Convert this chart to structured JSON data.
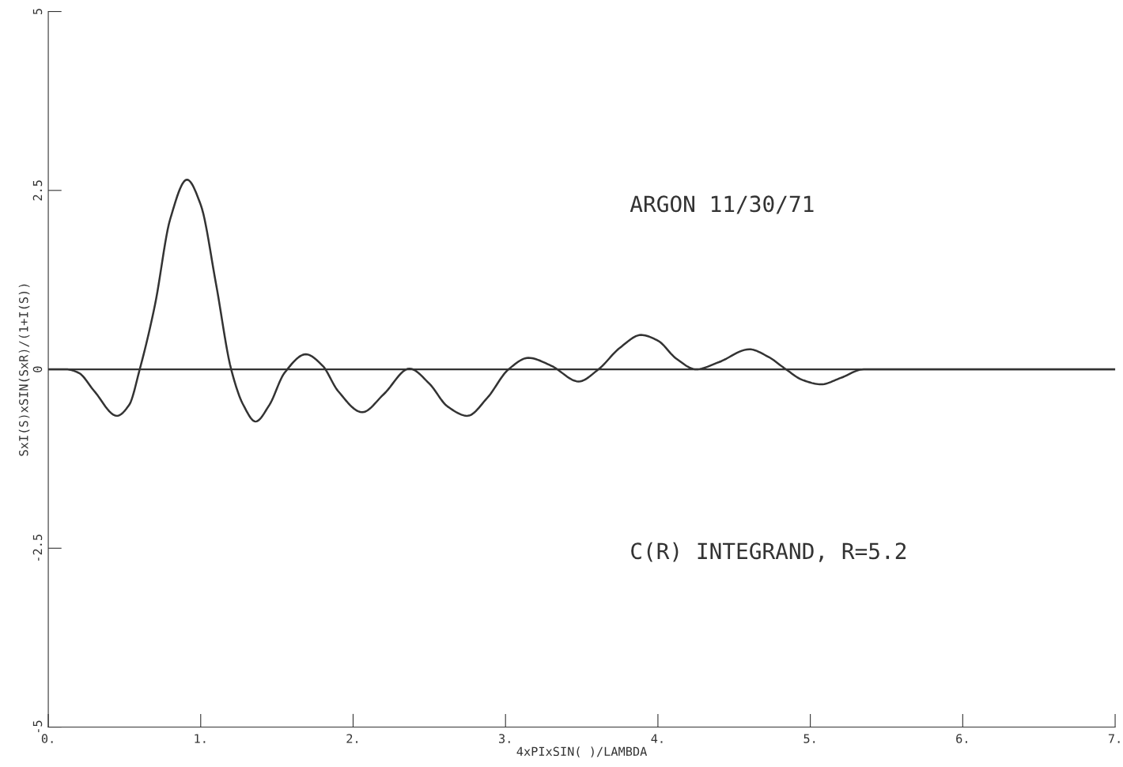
{
  "chart_data": {
    "type": "line",
    "xlabel": "4xPIxSIN( )/LAMBDA",
    "ylabel": "SxI(S)xSIN(SxR)/(1+I(S))",
    "annotations": [
      "ARGON 11/30/71",
      "C(R) INTEGRAND, R=5.2"
    ],
    "xlim": [
      0,
      7
    ],
    "ylim": [
      -5,
      5
    ],
    "xticks": [
      {
        "value": 0,
        "label": "0."
      },
      {
        "value": 1,
        "label": "1."
      },
      {
        "value": 2,
        "label": "2."
      },
      {
        "value": 3,
        "label": "3."
      },
      {
        "value": 4,
        "label": "4."
      },
      {
        "value": 5,
        "label": "5."
      },
      {
        "value": 6,
        "label": "6."
      },
      {
        "value": 7,
        "label": "7."
      }
    ],
    "yticks": [
      -5,
      -2.5,
      0,
      2.5,
      5
    ],
    "ref_lines": [
      {
        "axis": "y",
        "value": 0,
        "color": "#333333"
      }
    ],
    "x": [
      0,
      0.12,
      0.2,
      0.3,
      0.45,
      0.53,
      0.6,
      0.7,
      0.8,
      0.91,
      1.0,
      1.1,
      1.2,
      1.28,
      1.36,
      1.45,
      1.55,
      1.69,
      1.8,
      1.9,
      2.06,
      2.2,
      2.37,
      2.5,
      2.62,
      2.75,
      2.88,
      3.02,
      3.15,
      3.3,
      3.48,
      3.61,
      3.75,
      3.89,
      4.0,
      4.12,
      4.25,
      4.4,
      4.6,
      4.72,
      4.84,
      4.95,
      5.07,
      5.2,
      5.35,
      7
    ],
    "series": [
      {
        "color": "#333333",
        "values": [
          0,
          0,
          -0.05,
          -0.3,
          -0.65,
          -0.5,
          0,
          0.9,
          2.1,
          2.65,
          2.3,
          1.2,
          0,
          -0.5,
          -0.73,
          -0.5,
          -0.05,
          0.21,
          0.05,
          -0.3,
          -0.6,
          -0.35,
          0.01,
          -0.2,
          -0.52,
          -0.65,
          -0.4,
          0,
          0.16,
          0.05,
          -0.17,
          0,
          0.3,
          0.48,
          0.4,
          0.15,
          0,
          0.1,
          0.28,
          0.18,
          0,
          -0.15,
          -0.21,
          -0.12,
          0,
          0
        ]
      }
    ],
    "grid": false,
    "legend": false,
    "line_style": "solid",
    "marker": "none"
  }
}
